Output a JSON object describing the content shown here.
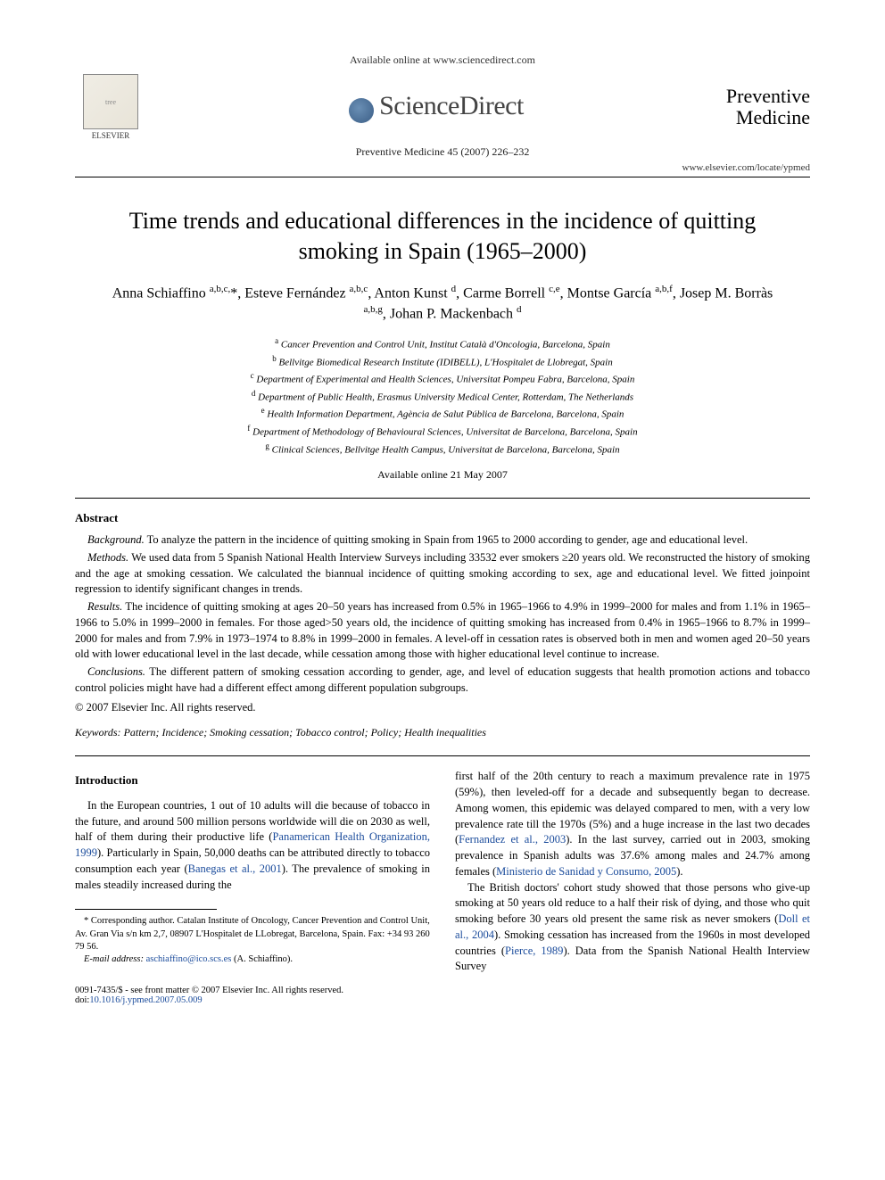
{
  "header": {
    "available_online": "Available online at www.sciencedirect.com",
    "publisher_name": "ELSEVIER",
    "sciencedirect": "ScienceDirect",
    "journal_name_line1": "Preventive",
    "journal_name_line2": "Medicine",
    "citation": "Preventive Medicine 45 (2007) 226–232",
    "journal_url": "www.elsevier.com/locate/ypmed"
  },
  "article": {
    "title": "Time trends and educational differences in the incidence of quitting smoking in Spain (1965–2000)",
    "authors_html": "Anna Schiaffino <sup>a,b,c,</sup>*, Esteve Fernández <sup>a,b,c</sup>, Anton Kunst <sup>d</sup>, Carme Borrell <sup>c,e</sup>, Montse García <sup>a,b,f</sup>, Josep M. Borràs <sup>a,b,g</sup>, Johan P. Mackenbach <sup>d</sup>",
    "affiliations": [
      "Cancer Prevention and Control Unit, Institut Català d'Oncologia, Barcelona, Spain",
      "Bellvitge Biomedical Research Institute (IDIBELL), L'Hospitalet de Llobregat, Spain",
      "Department of Experimental and Health Sciences, Universitat Pompeu Fabra, Barcelona, Spain",
      "Department of Public Health, Erasmus University Medical Center, Rotterdam, The Netherlands",
      "Health Information Department, Agència de Salut Pública de Barcelona, Barcelona, Spain",
      "Department of Methodology of Behavioural Sciences, Universitat de Barcelona, Barcelona, Spain",
      "Clinical Sciences, Bellvitge Health Campus, Universitat de Barcelona, Barcelona, Spain"
    ],
    "aff_letters": [
      "a",
      "b",
      "c",
      "d",
      "e",
      "f",
      "g"
    ],
    "available_date": "Available online 21 May 2007"
  },
  "abstract": {
    "heading": "Abstract",
    "background_label": "Background.",
    "background": " To analyze the pattern in the incidence of quitting smoking in Spain from 1965 to 2000 according to gender, age and educational level.",
    "methods_label": "Methods.",
    "methods": " We used data from 5 Spanish National Health Interview Surveys including 33532 ever smokers ≥20 years old. We reconstructed the history of smoking and the age at smoking cessation. We calculated the biannual incidence of quitting smoking according to sex, age and educational level. We fitted joinpoint regression to identify significant changes in trends.",
    "results_label": "Results.",
    "results": " The incidence of quitting smoking at ages 20–50 years has increased from 0.5% in 1965–1966 to 4.9% in 1999–2000 for males and from 1.1% in 1965–1966 to 5.0% in 1999–2000 in females. For those aged>50 years old, the incidence of quitting smoking has increased from 0.4% in 1965–1966 to 8.7% in 1999–2000 for males and from 7.9% in 1973–1974 to 8.8% in 1999–2000 in females. A level-off in cessation rates is observed both in men and women aged 20–50 years old with lower educational level in the last decade, while cessation among those with higher educational level continue to increase.",
    "conclusions_label": "Conclusions.",
    "conclusions": " The different pattern of smoking cessation according to gender, age, and level of education suggests that health promotion actions and tobacco control policies might have had a different effect among different population subgroups.",
    "copyright": "© 2007 Elsevier Inc. All rights reserved."
  },
  "keywords": {
    "label": "Keywords:",
    "list": " Pattern; Incidence; Smoking cessation; Tobacco control; Policy; Health inequalities"
  },
  "body": {
    "intro_heading": "Introduction",
    "col1_p1a": "In the European countries, 1 out of 10 adults will die because of tobacco in the future, and around 500 million persons worldwide will die on 2030 as well, half of them during their productive life (",
    "col1_ref1": "Panamerican Health Organization, 1999",
    "col1_p1b": "). Particularly in Spain, 50,000 deaths can be attributed directly to tobacco consumption each year (",
    "col1_ref2": "Banegas et al., 2001",
    "col1_p1c": "). The prevalence of smoking in males steadily increased during the",
    "col2_p1a": "first half of the 20th century to reach a maximum prevalence rate in 1975 (59%), then leveled-off for a decade and subsequently began to decrease. Among women, this epidemic was delayed compared to men, with a very low prevalence rate till the 1970s (5%) and a huge increase in the last two decades (",
    "col2_ref1": "Fernandez et al., 2003",
    "col2_p1b": "). In the last survey, carried out in 2003, smoking prevalence in Spanish adults was 37.6% among males and 24.7% among females (",
    "col2_ref2": "Ministerio de Sanidad y Consumo, 2005",
    "col2_p1c": ").",
    "col2_p2a": "The British doctors' cohort study showed that those persons who give-up smoking at 50 years old reduce to a half their risk of dying, and those who quit smoking before 30 years old present the same risk as never smokers (",
    "col2_ref3": "Doll et al., 2004",
    "col2_p2b": "). Smoking cessation has increased from the 1960s in most developed countries (",
    "col2_ref4": "Pierce, 1989",
    "col2_p2c": "). Data from the Spanish National Health Interview Survey"
  },
  "footnote": {
    "corr": "* Corresponding author. Catalan Institute of Oncology, Cancer Prevention and Control Unit, Av. Gran Via s/n km 2,7, 08907 L'Hospitalet de LLobregat, Barcelona, Spain. Fax: +34 93 260 79 56.",
    "email_label": "E-mail address:",
    "email": " aschiaffino@ico.scs.es ",
    "email_who": "(A. Schiaffino)."
  },
  "footer": {
    "line": "0091-7435/$ - see front matter © 2007 Elsevier Inc. All rights reserved.",
    "doi_label": "doi:",
    "doi": "10.1016/j.ypmed.2007.05.009"
  },
  "colors": {
    "link": "#1a4b9b",
    "text": "#000000",
    "bg": "#ffffff"
  }
}
